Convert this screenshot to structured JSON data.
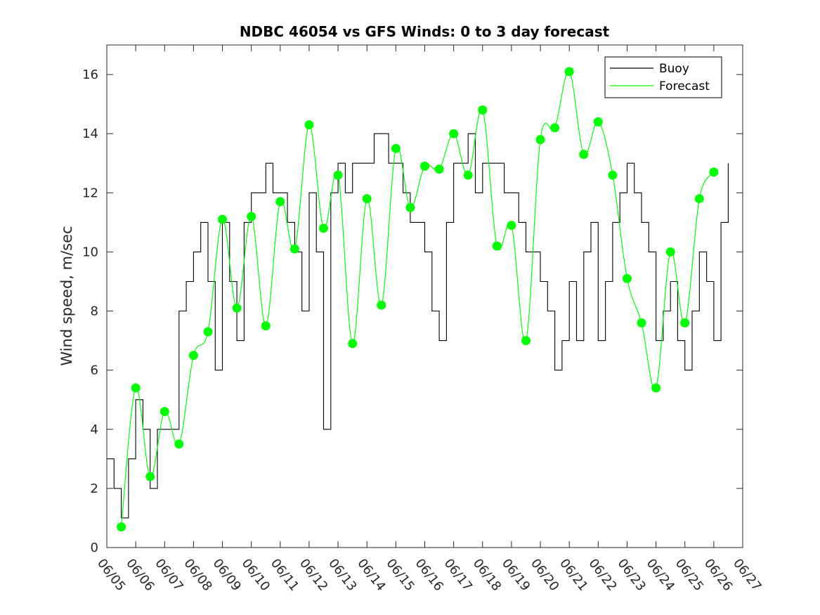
{
  "chart_data": {
    "type": "line",
    "title": "NDBC 46054 vs GFS Winds: 0 to 3 day forecast",
    "xlabel": "",
    "ylabel": "Wind speed, m/sec",
    "ylim": [
      0,
      17
    ],
    "yticks": [
      0,
      2,
      4,
      6,
      8,
      10,
      12,
      14,
      16
    ],
    "xlim": [
      0,
      22
    ],
    "xticks": [
      "06/05",
      "06/06",
      "06/07",
      "06/08",
      "06/09",
      "06/10",
      "06/11",
      "06/12",
      "06/13",
      "06/14",
      "06/15",
      "06/16",
      "06/17",
      "06/18",
      "06/19",
      "06/20",
      "06/21",
      "06/22",
      "06/23",
      "06/24",
      "06/25",
      "06/26",
      "06/27"
    ],
    "grid": false,
    "legend": {
      "position": "top-right",
      "entries": [
        "Buoy",
        "Forecast"
      ]
    },
    "colors": {
      "buoy": "#000000",
      "forecast": "#00ff00"
    },
    "series": [
      {
        "name": "Buoy",
        "x": [
          0,
          0.25,
          0.5,
          0.75,
          1.0,
          1.25,
          1.5,
          1.75,
          2.0,
          2.25,
          2.5,
          2.75,
          3.0,
          3.25,
          3.5,
          3.75,
          4.0,
          4.25,
          4.5,
          4.75,
          5.0,
          5.25,
          5.5,
          5.75,
          6.0,
          6.25,
          6.5,
          6.75,
          7.0,
          7.25,
          7.5,
          7.75,
          8.0,
          8.25,
          8.5,
          8.75,
          9.0,
          9.25,
          9.5,
          9.75,
          10.0,
          10.25,
          10.5,
          10.75,
          11.0,
          11.25,
          11.5,
          11.75,
          12.0,
          12.25,
          12.5,
          12.75,
          13.0,
          13.25,
          13.5,
          13.75,
          14.0,
          14.25,
          14.5,
          14.75,
          15.0,
          15.25,
          15.5,
          15.75,
          16.0,
          16.25,
          16.5,
          16.75,
          17.0,
          17.25,
          17.5,
          17.75,
          18.0,
          18.25,
          18.5,
          18.75,
          19.0,
          19.25,
          19.5,
          19.75,
          20.0,
          20.25,
          20.5,
          20.75,
          21.0,
          21.25,
          21.5
        ],
        "values": [
          3,
          2,
          1,
          3,
          5,
          4,
          2,
          4,
          4,
          4,
          8,
          9,
          10,
          11,
          9,
          6,
          11,
          9,
          7,
          11,
          12,
          12,
          13,
          12,
          12,
          11,
          10,
          8,
          12,
          10,
          4,
          12,
          13,
          12,
          13,
          13,
          13,
          14,
          14,
          13,
          13,
          12,
          11,
          11,
          10,
          8,
          7,
          11,
          13,
          13,
          14,
          12,
          13,
          13,
          13,
          12,
          12,
          11,
          10,
          10,
          9,
          8,
          6,
          7,
          9,
          7,
          10,
          11,
          7,
          9,
          11,
          12,
          13,
          12,
          11,
          10,
          7,
          8,
          9,
          7,
          6,
          8,
          10,
          9,
          7,
          11,
          13
        ]
      },
      {
        "name": "Forecast",
        "x": [
          0.5,
          1.0,
          1.5,
          2.0,
          2.5,
          3.0,
          3.5,
          4.0,
          4.5,
          5.0,
          5.5,
          6.0,
          6.5,
          7.0,
          7.5,
          8.0,
          8.5,
          9.0,
          9.5,
          10.0,
          10.5,
          11.0,
          11.5,
          12.0,
          12.5,
          13.0,
          13.5,
          14.0,
          14.5,
          15.0,
          15.5,
          16.0,
          16.5,
          17.0,
          17.5,
          18.0,
          18.5,
          19.0,
          19.5,
          20.0,
          20.5,
          21.0
        ],
        "values": [
          0.7,
          5.4,
          2.4,
          4.6,
          3.5,
          6.5,
          7.3,
          11.1,
          8.1,
          11.2,
          7.5,
          11.7,
          10.1,
          14.3,
          10.8,
          12.6,
          6.9,
          11.8,
          8.2,
          13.5,
          11.5,
          12.9,
          12.8,
          14.0,
          12.6,
          14.8,
          10.2,
          10.9,
          7.0,
          13.8,
          14.2,
          16.1,
          13.3,
          14.4,
          12.6,
          9.1,
          7.6,
          5.4,
          10.0,
          7.6,
          11.8,
          12.7
        ]
      }
    ]
  }
}
